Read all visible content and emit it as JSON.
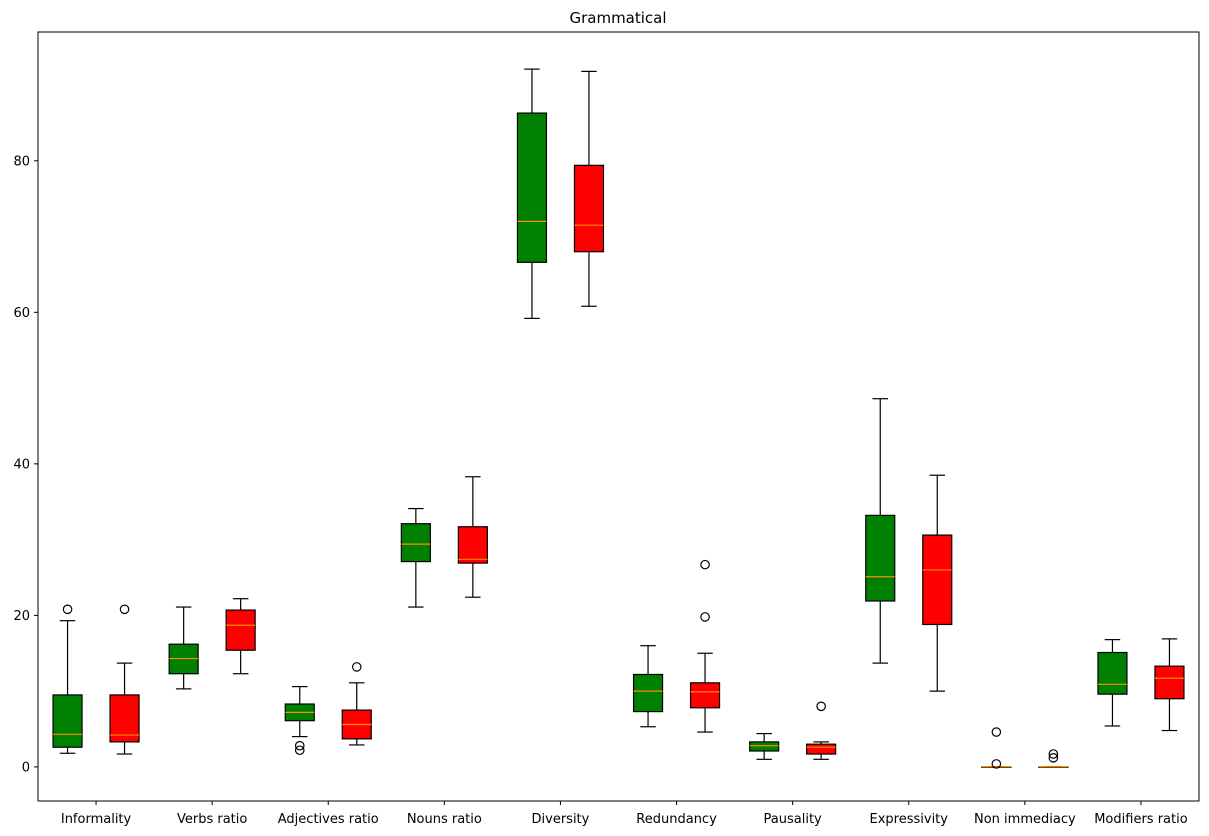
{
  "chart_data": {
    "type": "box",
    "title": "Grammatical",
    "xlabel": "",
    "ylabel": "",
    "ylim": [
      -4.5,
      97
    ],
    "yticks": [
      0,
      20,
      40,
      60,
      80
    ],
    "grid": false,
    "legend": "none",
    "colors": {
      "group_a": "#008000",
      "group_b": "#ff0000",
      "median": "#ff8c00",
      "edge": "#000000"
    },
    "categories": [
      "Informality",
      "Verbs ratio",
      "Adjectives ratio",
      "Nouns ratio",
      "Diversity",
      "Redundancy",
      "Pausality",
      "Expressivity",
      "Non immediacy",
      "Modifiers ratio"
    ],
    "boxes": [
      {
        "category": "Informality",
        "group": "a",
        "whisker_low": 1.8,
        "q1": 2.6,
        "median": 4.3,
        "q3": 9.5,
        "whisker_high": 19.3,
        "outliers": [
          20.8
        ]
      },
      {
        "category": "Informality",
        "group": "b",
        "whisker_low": 1.7,
        "q1": 3.3,
        "median": 4.2,
        "q3": 9.5,
        "whisker_high": 13.7,
        "outliers": [
          20.8
        ]
      },
      {
        "category": "Verbs ratio",
        "group": "a",
        "whisker_low": 10.3,
        "q1": 12.3,
        "median": 14.3,
        "q3": 16.2,
        "whisker_high": 21.1,
        "outliers": []
      },
      {
        "category": "Verbs ratio",
        "group": "b",
        "whisker_low": 12.3,
        "q1": 15.4,
        "median": 18.7,
        "q3": 20.7,
        "whisker_high": 22.2,
        "outliers": []
      },
      {
        "category": "Adjectives ratio",
        "group": "a",
        "whisker_low": 4.0,
        "q1": 6.1,
        "median": 7.2,
        "q3": 8.3,
        "whisker_high": 10.6,
        "outliers": [
          2.2,
          2.8
        ]
      },
      {
        "category": "Adjectives ratio",
        "group": "b",
        "whisker_low": 2.9,
        "q1": 3.7,
        "median": 5.6,
        "q3": 7.5,
        "whisker_high": 11.1,
        "outliers": [
          13.2
        ]
      },
      {
        "category": "Nouns ratio",
        "group": "a",
        "whisker_low": 21.1,
        "q1": 27.1,
        "median": 29.4,
        "q3": 32.1,
        "whisker_high": 34.1,
        "outliers": []
      },
      {
        "category": "Nouns ratio",
        "group": "b",
        "whisker_low": 22.4,
        "q1": 26.9,
        "median": 27.4,
        "q3": 31.7,
        "whisker_high": 38.3,
        "outliers": []
      },
      {
        "category": "Diversity",
        "group": "a",
        "whisker_low": 59.2,
        "q1": 66.6,
        "median": 72.0,
        "q3": 86.3,
        "whisker_high": 92.1,
        "outliers": []
      },
      {
        "category": "Diversity",
        "group": "b",
        "whisker_low": 60.8,
        "q1": 68.0,
        "median": 71.5,
        "q3": 79.4,
        "whisker_high": 91.8,
        "outliers": []
      },
      {
        "category": "Redundancy",
        "group": "a",
        "whisker_low": 5.3,
        "q1": 7.3,
        "median": 10.0,
        "q3": 12.2,
        "whisker_high": 16.0,
        "outliers": []
      },
      {
        "category": "Redundancy",
        "group": "b",
        "whisker_low": 4.6,
        "q1": 7.8,
        "median": 9.9,
        "q3": 11.1,
        "whisker_high": 15.0,
        "outliers": [
          19.8,
          26.7
        ]
      },
      {
        "category": "Pausality",
        "group": "a",
        "whisker_low": 1.0,
        "q1": 2.1,
        "median": 2.8,
        "q3": 3.3,
        "whisker_high": 4.4,
        "outliers": []
      },
      {
        "category": "Pausality",
        "group": "b",
        "whisker_low": 1.0,
        "q1": 1.7,
        "median": 2.6,
        "q3": 3.0,
        "whisker_high": 3.3,
        "outliers": [
          8.0
        ]
      },
      {
        "category": "Expressivity",
        "group": "a",
        "whisker_low": 13.7,
        "q1": 21.9,
        "median": 25.1,
        "q3": 33.2,
        "whisker_high": 48.6,
        "outliers": []
      },
      {
        "category": "Expressivity",
        "group": "b",
        "whisker_low": 10.0,
        "q1": 18.8,
        "median": 26.0,
        "q3": 30.6,
        "whisker_high": 38.5,
        "outliers": []
      },
      {
        "category": "Non immediacy",
        "group": "a",
        "whisker_low": 0.0,
        "q1": 0.0,
        "median": 0.0,
        "q3": 0.0,
        "whisker_high": 0.0,
        "outliers": [
          0.4,
          4.6
        ]
      },
      {
        "category": "Non immediacy",
        "group": "b",
        "whisker_low": 0.0,
        "q1": 0.0,
        "median": 0.0,
        "q3": 0.0,
        "whisker_high": 0.0,
        "outliers": [
          1.2,
          1.7
        ]
      },
      {
        "category": "Modifiers ratio",
        "group": "a",
        "whisker_low": 5.4,
        "q1": 9.6,
        "median": 10.9,
        "q3": 15.1,
        "whisker_high": 16.8,
        "outliers": []
      },
      {
        "category": "Modifiers ratio",
        "group": "b",
        "whisker_low": 4.8,
        "q1": 9.0,
        "median": 11.7,
        "q3": 13.3,
        "whisker_high": 16.9,
        "outliers": []
      }
    ]
  }
}
